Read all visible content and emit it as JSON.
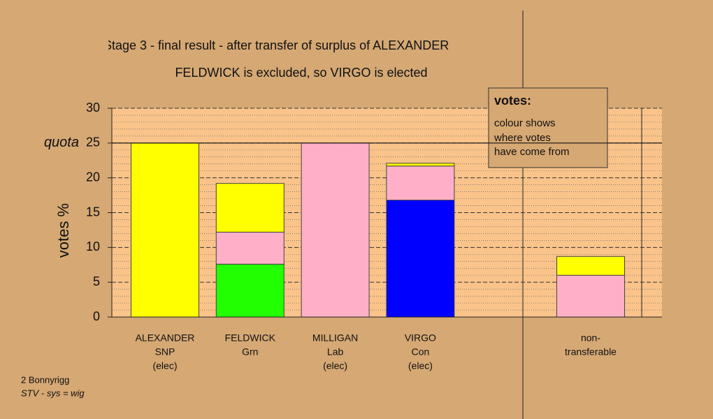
{
  "chart_data": {
    "type": "stacked-bar",
    "title": "Stage 3 - final result - after transfer of surplus of ALEXANDER",
    "subtitle": "FELDWICK is excluded, so VIRGO is elected",
    "y_label": "votes %",
    "categories": [
      [
        "ALEXANDER",
        "SNP",
        "(elec)"
      ],
      [
        "FELDWICK",
        "Grn"
      ],
      [
        "MILLIGAN",
        "Lab",
        "(elec)"
      ],
      [
        "VIRGO",
        "Con",
        "(elec)"
      ],
      null,
      [
        "non-",
        "transferable"
      ]
    ],
    "series": [
      {
        "color": "#22ff00",
        "values": [
          0,
          7.6,
          0,
          0,
          null,
          0
        ]
      },
      {
        "color": "#0000ff",
        "values": [
          0,
          0,
          0,
          16.8,
          null,
          0
        ]
      },
      {
        "color": "#ffb0c8",
        "values": [
          0,
          4.6,
          25,
          4.9,
          null,
          6.0
        ]
      },
      {
        "color": "#ffff00",
        "values": [
          25,
          7.0,
          0,
          0.4,
          null,
          2.7
        ]
      }
    ],
    "ylim": [
      0,
      30
    ],
    "yticks": [
      0,
      5,
      10,
      15,
      20,
      25,
      30
    ],
    "minor_yticks": [
      1,
      2,
      3,
      4,
      6,
      7,
      8,
      9,
      11,
      12,
      13,
      14,
      16,
      17,
      18,
      19,
      21,
      22,
      23,
      24,
      26,
      27,
      28,
      29
    ],
    "grid": true,
    "quota": {
      "value": 25,
      "label": "quota"
    },
    "note": {
      "title": "votes:",
      "lines": [
        "colour shows",
        "where votes",
        "have come from"
      ]
    },
    "footer": [
      "2 Bonnyrigg",
      "STV - sys = wig"
    ]
  }
}
